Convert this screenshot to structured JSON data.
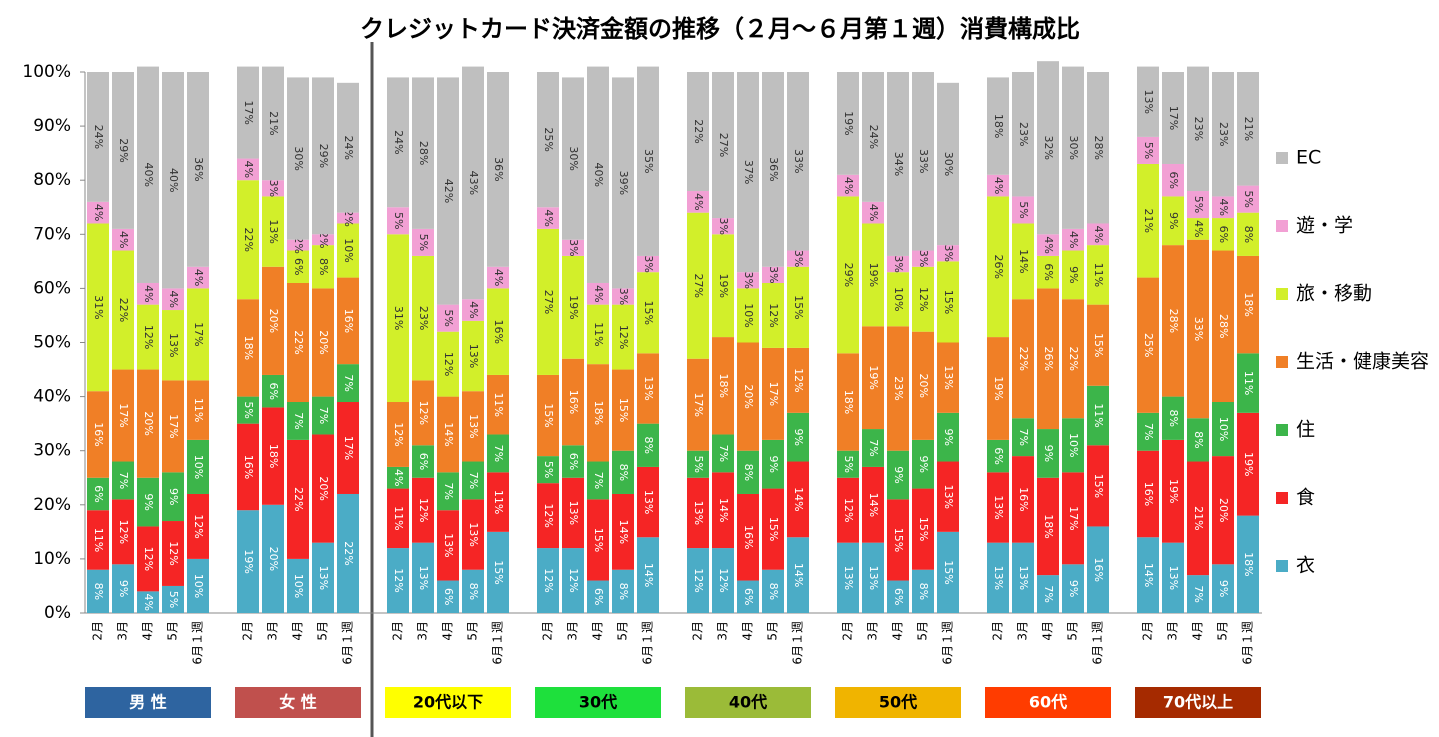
{
  "chart_data": {
    "type": "bar",
    "stacked": true,
    "legend": "right",
    "title": "クレジットカード決済金額の推移（２月～６月第１週）消費構成比",
    "categories": [
      "2月",
      "3月",
      "4月",
      "5月",
      "6月１週",
      "2月",
      "3月",
      "4月",
      "5月",
      "6月１週",
      "2月",
      "3月",
      "4月",
      "5月",
      "6月１週",
      "2月",
      "3月",
      "4月",
      "5月",
      "6月１週",
      "2月",
      "3月",
      "4月",
      "5月",
      "6月１週",
      "2月",
      "3月",
      "4月",
      "5月",
      "6月１週",
      "2月",
      "3月",
      "4月",
      "5月",
      "6月１週",
      "2月",
      "3月",
      "4月",
      "5月",
      "6月１週"
    ],
    "groups": [
      {
        "label": "男 性",
        "color": "#2e64a0",
        "text_color": "#ffffff"
      },
      {
        "label": "女 性",
        "color": "#c0504d",
        "text_color": "#ffffff"
      },
      {
        "label": "20代以下",
        "color": "#ffff00",
        "text_color": "#000000"
      },
      {
        "label": "30代",
        "color": "#1ee03c",
        "text_color": "#000000"
      },
      {
        "label": "40代",
        "color": "#9bbb38",
        "text_color": "#000000"
      },
      {
        "label": "50代",
        "color": "#f0b400",
        "text_color": "#000000"
      },
      {
        "label": "60代",
        "color": "#ff3c00",
        "text_color": "#ffffff"
      },
      {
        "label": "70代以上",
        "color": "#a52a00",
        "text_color": "#ffffff"
      }
    ],
    "ylim": [
      0,
      100
    ],
    "yticks": [
      {
        "value": 0,
        "label": "0%"
      },
      {
        "value": 10,
        "label": "10%"
      },
      {
        "value": 20,
        "label": "20%"
      },
      {
        "value": 30,
        "label": "30%"
      },
      {
        "value": 40,
        "label": "40%"
      },
      {
        "value": 50,
        "label": "50%"
      },
      {
        "value": 60,
        "label": "60%"
      },
      {
        "value": 70,
        "label": "70%"
      },
      {
        "value": 80,
        "label": "80%"
      },
      {
        "value": 90,
        "label": "90%"
      },
      {
        "value": 100,
        "label": "100%"
      }
    ],
    "series": [
      {
        "name": "衣",
        "color": "#4bacc6",
        "label_color": "#ffffff",
        "values": [
          8,
          9,
          4,
          5,
          10,
          19,
          20,
          10,
          13,
          22,
          12,
          13,
          6,
          8,
          15,
          12,
          12,
          6,
          8,
          14,
          12,
          12,
          6,
          8,
          14,
          13,
          13,
          6,
          8,
          15,
          13,
          13,
          7,
          9,
          16,
          14,
          13,
          7,
          9,
          18
        ],
        "value_labels": [
          "8%",
          "9%",
          "4%",
          "5%",
          "10%",
          "19%",
          "20%",
          "10%",
          "13%",
          "22%",
          "12%",
          "13%",
          "6%",
          "8%",
          "15%",
          "12%",
          "12%",
          "6%",
          "8%",
          "14%",
          "12%",
          "12%",
          "6%",
          "8%",
          "14%",
          "13%",
          "13%",
          "6%",
          "8%",
          "15%",
          "13%",
          "13%",
          "7%",
          "9%",
          "16%",
          "14%",
          "13%",
          "7%",
          "9%",
          "18%"
        ]
      },
      {
        "name": "食",
        "color": "#f52525",
        "label_color": "#ffffff",
        "values": [
          11,
          12,
          12,
          12,
          12,
          16,
          18,
          22,
          20,
          17,
          11,
          12,
          13,
          13,
          11,
          12,
          13,
          15,
          14,
          13,
          13,
          14,
          16,
          15,
          14,
          12,
          14,
          15,
          15,
          13,
          13,
          16,
          18,
          17,
          15,
          16,
          19,
          21,
          20,
          19
        ],
        "value_labels": [
          "11%",
          "12%",
          "12%",
          "12%",
          "12%",
          "16%",
          "18%",
          "22%",
          "20%",
          "17%",
          "11%",
          "12%",
          "13%",
          "13%",
          "11%",
          "12%",
          "13%",
          "15%",
          "14%",
          "13%",
          "13%",
          "14%",
          "16%",
          "15%",
          "14%",
          "12%",
          "14%",
          "15%",
          "15%",
          "13%",
          "13%",
          "16%",
          "18%",
          "17%",
          "15%",
          "16%",
          "19%",
          "21%",
          "20%",
          "19%"
        ]
      },
      {
        "name": "住",
        "color": "#3cb54a",
        "label_color": "#ffffff",
        "values": [
          6,
          7,
          9,
          9,
          10,
          5,
          6,
          7,
          7,
          7,
          4,
          6,
          7,
          7,
          7,
          5,
          6,
          7,
          8,
          8,
          5,
          7,
          8,
          9,
          9,
          5,
          7,
          9,
          9,
          9,
          6,
          7,
          9,
          10,
          11,
          7,
          8,
          8,
          10,
          11
        ],
        "value_labels": [
          "6%",
          "7%",
          "9%",
          "9%",
          "10%",
          "5%",
          "6%",
          "7%",
          "7%",
          "7%",
          "4%",
          "6%",
          "7%",
          "7%",
          "7%",
          "5%",
          "6%",
          "7%",
          "8%",
          "8%",
          "5%",
          "7%",
          "8%",
          "9%",
          "9%",
          "5%",
          "7%",
          "9%",
          "9%",
          "9%",
          "6%",
          "7%",
          "9%",
          "10%",
          "11%",
          "7%",
          "8%",
          "8%",
          "10%",
          "11%"
        ]
      },
      {
        "name": "生活・健康美容",
        "color": "#f07f26",
        "label_color": "#ffffff",
        "values": [
          16,
          17,
          20,
          17,
          11,
          18,
          20,
          22,
          20,
          16,
          12,
          12,
          14,
          13,
          11,
          15,
          16,
          18,
          15,
          13,
          17,
          18,
          20,
          17,
          12,
          18,
          19,
          23,
          20,
          13,
          19,
          22,
          26,
          22,
          15,
          25,
          28,
          33,
          28,
          18
        ],
        "value_labels": [
          "16%",
          "17%",
          "20%",
          "17%",
          "11%",
          "18%",
          "20%",
          "22%",
          "20%",
          "16%",
          "12%",
          "12%",
          "14%",
          "13%",
          "11%",
          "15%",
          "16%",
          "18%",
          "15%",
          "13%",
          "17%",
          "18%",
          "20%",
          "17%",
          "12%",
          "18%",
          "19%",
          "23%",
          "20%",
          "13%",
          "19%",
          "22%",
          "26%",
          "22%",
          "15%",
          "25%",
          "28%",
          "33%",
          "28%",
          "18%"
        ]
      },
      {
        "name": "旅・移動",
        "color": "#d2ef2a",
        "label_color": "#333333",
        "values": [
          31,
          22,
          12,
          13,
          17,
          22,
          13,
          6,
          8,
          10,
          31,
          23,
          12,
          13,
          16,
          27,
          19,
          11,
          12,
          15,
          27,
          19,
          10,
          12,
          15,
          29,
          19,
          10,
          12,
          15,
          26,
          14,
          6,
          9,
          11,
          21,
          9,
          4,
          6,
          8
        ],
        "value_labels": [
          "31%",
          "22%",
          "12%",
          "13%",
          "17%",
          "22%",
          "13%",
          "6%",
          "8%",
          "10%",
          "31%",
          "23%",
          "12%",
          "13%",
          "16%",
          "27%",
          "19%",
          "11%",
          "12%",
          "15%",
          "27%",
          "19%",
          "10%",
          "12%",
          "15%",
          "29%",
          "19%",
          "10%",
          "12%",
          "15%",
          "26%",
          "14%",
          "6%",
          "9%",
          "11%",
          "21%",
          "9%",
          "4%",
          "6%",
          "8%"
        ]
      },
      {
        "name": "遊・学",
        "color": "#f2a0d4",
        "label_color": "#333333",
        "values": [
          4,
          4,
          4,
          4,
          4,
          4,
          3,
          2,
          2,
          2,
          5,
          5,
          5,
          4,
          4,
          4,
          3,
          4,
          3,
          3,
          4,
          3,
          3,
          3,
          3,
          4,
          4,
          3,
          3,
          3,
          4,
          5,
          4,
          4,
          4,
          5,
          6,
          5,
          4,
          5
        ],
        "value_labels": [
          "4%",
          "4%",
          "4%",
          "4%",
          "4%",
          "4%",
          "3%",
          "2%",
          "2%",
          "2%",
          "5%",
          "5%",
          "5%",
          "4%",
          "4%",
          "4%",
          "3%",
          "4%",
          "3%",
          "3%",
          "4%",
          "3%",
          "3%",
          "3%",
          "3%",
          "4%",
          "4%",
          "3%",
          "3%",
          "3%",
          "4%",
          "5%",
          "4%",
          "4%",
          "4%",
          "5%",
          "6%",
          "5%",
          "4%",
          "5%"
        ]
      },
      {
        "name": "EC",
        "color": "#bfbfbf",
        "label_color": "#333333",
        "values": [
          24,
          29,
          40,
          40,
          36,
          17,
          21,
          30,
          29,
          24,
          24,
          28,
          42,
          43,
          36,
          25,
          30,
          40,
          39,
          35,
          22,
          27,
          37,
          36,
          33,
          19,
          24,
          34,
          33,
          30,
          18,
          23,
          32,
          30,
          28,
          13,
          17,
          23,
          23,
          21
        ],
        "value_labels": [
          "24%",
          "29%",
          "40%",
          "40%",
          "36%",
          "17%",
          "21%",
          "30%",
          "29%",
          "24%",
          "24%",
          "28%",
          "42%",
          "43%",
          "36%",
          "25%",
          "30%",
          "40%",
          "39%",
          "35%",
          "22%",
          "27%",
          "37%",
          "36%",
          "33%",
          "19%",
          "24%",
          "34%",
          "33%",
          "30%",
          "18%",
          "23%",
          "32%",
          "30%",
          "28%",
          "13%",
          "17%",
          "23%",
          "23%",
          "21%"
        ]
      }
    ]
  }
}
